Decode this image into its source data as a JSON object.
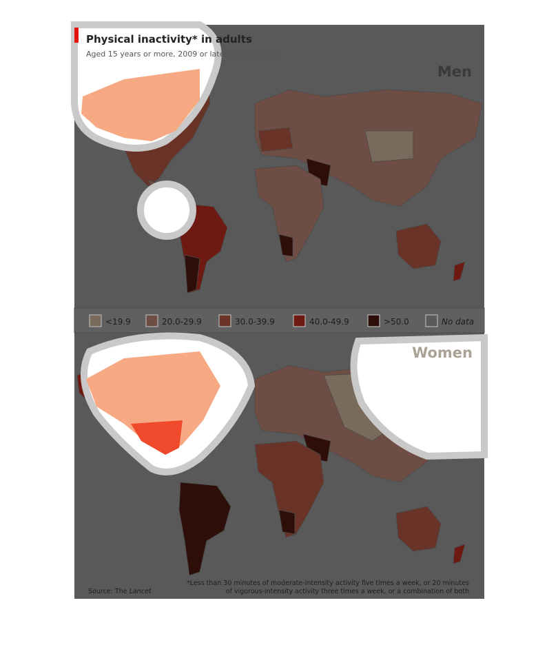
{
  "header": {
    "title": "Physical inactivity* in adults",
    "subtitle": "Aged 15 years or more, 2009 or latest available, %"
  },
  "panels": {
    "top": "Men",
    "bottom": "Women"
  },
  "legend": [
    {
      "label": "<19.9",
      "color": "#7a6a5c"
    },
    {
      "label": "20.0-29.9",
      "color": "#6e4e44"
    },
    {
      "label": "30.0-39.9",
      "color": "#6a3328"
    },
    {
      "label": "40.0-49.9",
      "color": "#6e1a12"
    },
    {
      "label": ">50.0",
      "color": "#2e0e08"
    },
    {
      "label": "No data",
      "color": "#5a5a5a"
    }
  ],
  "source": {
    "prefix": "Source: The",
    "name": "Lancet"
  },
  "footnote": [
    "*Less than 30 minutes of moderate-intensity activity five times a week, or 20 minutes",
    "of vigorous-intensity activity three times a week, or a combination of both"
  ]
}
